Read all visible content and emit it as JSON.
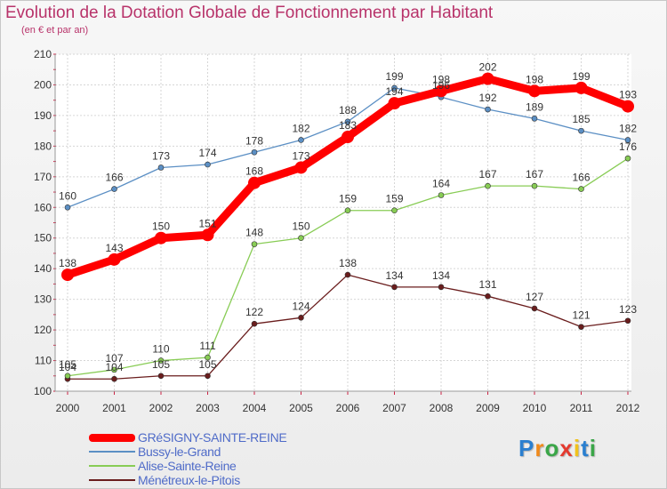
{
  "chart_data": {
    "type": "line",
    "title": "Evolution de la Dotation Globale de Fonctionnement par Habitant",
    "subtitle": "(en € et par an)",
    "xlabel": "",
    "ylabel": "",
    "ylim": [
      100,
      210
    ],
    "yticks": [
      100,
      110,
      120,
      130,
      140,
      150,
      160,
      170,
      180,
      190,
      200,
      210
    ],
    "grid": true,
    "categories": [
      "2000",
      "2001",
      "2002",
      "2003",
      "2004",
      "2005",
      "2006",
      "2007",
      "2008",
      "2009",
      "2010",
      "2011",
      "2012"
    ],
    "series": [
      {
        "name": "GRéSIGNY-SAINTE-REINE",
        "color": "#ff0000",
        "values": [
          138,
          143,
          150,
          151,
          168,
          173,
          183,
          194,
          198,
          202,
          198,
          199,
          193
        ],
        "labels": [
          "138",
          "143",
          "150",
          "151",
          "168",
          "173",
          "183",
          "194",
          "198",
          "202",
          "198",
          "199",
          "193"
        ]
      },
      {
        "name": "Bussy-le-Grand",
        "color": "#5b8fc4",
        "values": [
          160,
          166,
          173,
          174,
          178,
          182,
          188,
          199,
          196,
          192,
          189,
          185,
          182
        ],
        "labels": [
          "160",
          "166",
          "173",
          "174",
          "178",
          "182",
          "188",
          "199",
          "196",
          "192",
          "189",
          "185",
          "182"
        ]
      },
      {
        "name": "Alise-Sainte-Reine",
        "color": "#88cc55",
        "values": [
          105,
          107,
          110,
          111,
          148,
          150,
          159,
          159,
          164,
          167,
          167,
          166,
          176
        ],
        "labels": [
          "105",
          "107",
          "110",
          "111",
          "148",
          "150",
          "159",
          "159",
          "164",
          "167",
          "167",
          "166",
          "176"
        ]
      },
      {
        "name": "Ménétreux-le-Pitois",
        "color": "#6a1d1d",
        "values": [
          104,
          104,
          105,
          105,
          122,
          124,
          138,
          134,
          134,
          131,
          127,
          121,
          123
        ],
        "labels": [
          "104",
          "104",
          "105",
          "105",
          "122",
          "124",
          "138",
          "134",
          "134",
          "131",
          "127",
          "121",
          "123"
        ]
      }
    ]
  },
  "logo": {
    "letters": [
      "P",
      "r",
      "o",
      "x",
      "i",
      "t",
      "i"
    ],
    "colors": [
      "#2a7fd0",
      "#f08a1c",
      "#3aa648",
      "#e43a2f",
      "#f1c21b",
      "#2a7fd0",
      "#3aa648"
    ]
  }
}
